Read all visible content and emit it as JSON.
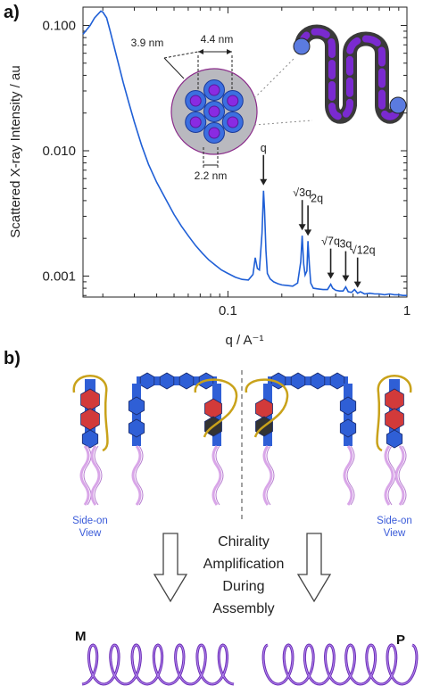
{
  "panel_a": {
    "label": "a)"
  },
  "panel_b": {
    "label": "b)"
  },
  "chart_data": {
    "type": "line",
    "xlabel": "q / A⁻¹",
    "ylabel": "Scattered X-ray Intensity / au",
    "xscale": "log",
    "yscale": "log",
    "xlim": [
      0.0155,
      1.0
    ],
    "ylim": [
      0.00068,
      0.14
    ],
    "x_ticks": [
      0.1,
      1
    ],
    "x_tick_labels": [
      "0.1",
      "1"
    ],
    "y_ticks": [
      0.001,
      0.01,
      0.1
    ],
    "y_tick_labels": [
      "0.001",
      "0.010",
      "0.100"
    ],
    "series_color": "#1f5fd6",
    "x": [
      0.0155,
      0.016,
      0.017,
      0.018,
      0.019,
      0.0195,
      0.02,
      0.021,
      0.022,
      0.024,
      0.026,
      0.028,
      0.03,
      0.033,
      0.036,
      0.04,
      0.045,
      0.05,
      0.055,
      0.06,
      0.066,
      0.072,
      0.078,
      0.085,
      0.092,
      0.1,
      0.11,
      0.12,
      0.13,
      0.138,
      0.142,
      0.146,
      0.15,
      0.155,
      0.158,
      0.16,
      0.163,
      0.166,
      0.172,
      0.18,
      0.19,
      0.2,
      0.215,
      0.23,
      0.245,
      0.255,
      0.26,
      0.265,
      0.27,
      0.276,
      0.28,
      0.285,
      0.29,
      0.3,
      0.32,
      0.34,
      0.36,
      0.375,
      0.385,
      0.4,
      0.42,
      0.44,
      0.455,
      0.47,
      0.49,
      0.51,
      0.53,
      0.55,
      0.58,
      0.62,
      0.66,
      0.7,
      0.75,
      0.8,
      0.85,
      0.9,
      0.95,
      1.0
    ],
    "y": [
      0.085,
      0.09,
      0.1,
      0.115,
      0.125,
      0.13,
      0.128,
      0.115,
      0.09,
      0.055,
      0.035,
      0.024,
      0.017,
      0.011,
      0.0078,
      0.0056,
      0.0041,
      0.0031,
      0.0025,
      0.0021,
      0.00175,
      0.00152,
      0.00135,
      0.00122,
      0.00112,
      0.00105,
      0.00098,
      0.00094,
      0.00093,
      0.00103,
      0.0014,
      0.00115,
      0.00112,
      0.0022,
      0.0048,
      0.0034,
      0.0016,
      0.00105,
      0.00095,
      0.0009,
      0.00087,
      0.00085,
      0.00084,
      0.00083,
      0.00088,
      0.0013,
      0.0021,
      0.00125,
      0.00102,
      0.0011,
      0.0019,
      0.00125,
      0.00088,
      0.0008,
      0.00079,
      0.00078,
      0.00078,
      0.00086,
      0.0008,
      0.00077,
      0.00076,
      0.00076,
      0.00082,
      0.00075,
      0.00074,
      0.00078,
      0.00073,
      0.00075,
      0.00072,
      0.00073,
      0.00072,
      0.00072,
      0.00071,
      0.00072,
      0.00071,
      0.00071,
      0.0007,
      0.0007
    ],
    "peak_annotations": [
      {
        "label": "q",
        "q": 0.158
      },
      {
        "label": "√3q",
        "q": 0.26
      },
      {
        "label": "2q",
        "q": 0.28
      },
      {
        "label": "√7q",
        "q": 0.375
      },
      {
        "label": "3q",
        "q": 0.455
      },
      {
        "label": "√12q",
        "q": 0.53
      }
    ],
    "inset_dimensions": [
      "4.4 nm",
      "3.9 nm",
      "2.2 nm"
    ]
  },
  "scheme": {
    "side_view_left": [
      "Side-on",
      "View"
    ],
    "side_view_right": [
      "Side-on",
      "View"
    ],
    "center_text": [
      "Chirality",
      "Amplification",
      "During",
      "Assembly"
    ],
    "left_handedness": "M",
    "right_handedness": "P",
    "colors": {
      "blue": "#2f5fd6",
      "red": "#d23a3a",
      "dark": "#333333",
      "gold": "#c9a21a",
      "pink": "#d9a6e8",
      "purple": "#6a2bb5"
    }
  }
}
